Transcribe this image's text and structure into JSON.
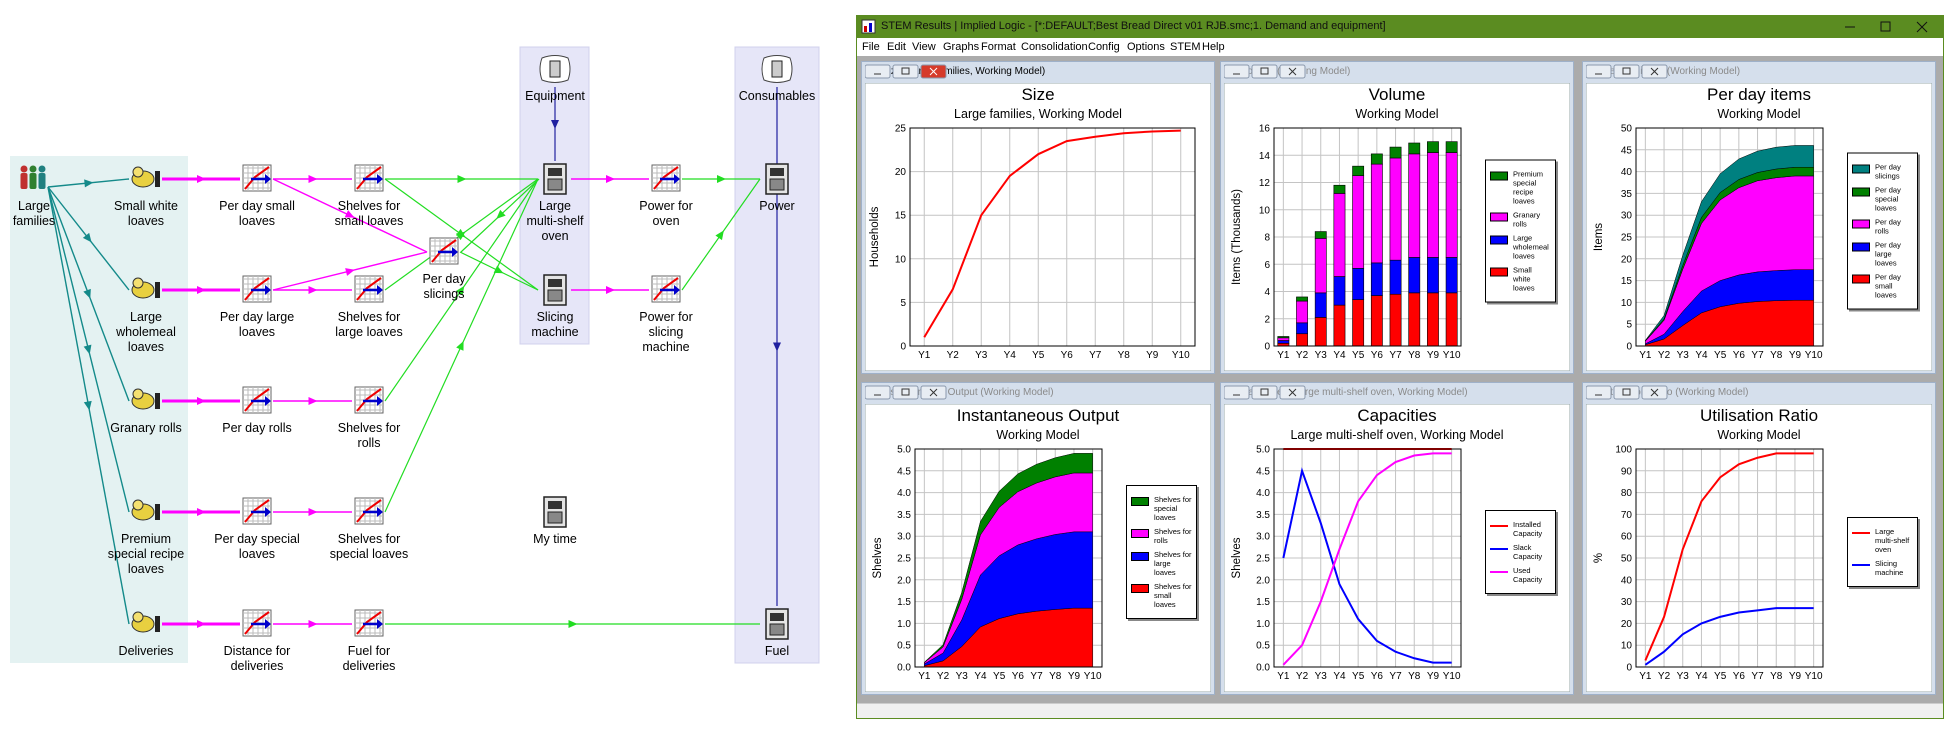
{
  "diagram": {
    "nodes": [
      {
        "label": "Large families"
      },
      {
        "label": "Small white loaves"
      },
      {
        "label": "Large wholemeal loaves"
      },
      {
        "label": "Granary rolls"
      },
      {
        "label": "Premium special recipe loaves"
      },
      {
        "label": "Deliveries"
      },
      {
        "label": "Per day small loaves"
      },
      {
        "label": "Per day large loaves"
      },
      {
        "label": "Per day rolls"
      },
      {
        "label": "Per day special loaves"
      },
      {
        "label": "Distance for deliveries"
      },
      {
        "label": "Shelves for small loaves"
      },
      {
        "label": "Shelves for large loaves"
      },
      {
        "label": "Shelves for rolls"
      },
      {
        "label": "Shelves for special loaves"
      },
      {
        "label": "Fuel for deliveries"
      },
      {
        "label": "Per day slicings"
      },
      {
        "label": "Large multi-shelf oven"
      },
      {
        "label": "Slicing machine"
      },
      {
        "label": "Power for oven"
      },
      {
        "label": "Power for slicing machine"
      },
      {
        "label": "Power"
      },
      {
        "label": "Fuel"
      },
      {
        "label": "My time"
      },
      {
        "label": "Equipment"
      },
      {
        "label": "Consumables"
      }
    ]
  },
  "window": {
    "title": "STEM Results | Implied Logic - [*:DEFAULT;Best Bread Direct v01 RJB.smc;1. Demand and equipment]",
    "menu": [
      "File",
      "Edit",
      "View",
      "Graphs",
      "Format",
      "Consolidation",
      "Config",
      "Options",
      "STEM",
      "Help"
    ]
  },
  "chart_data": [
    {
      "type": "line",
      "window_title": "Size (Large families, Working Model)",
      "title": "Size",
      "subtitle": "Large families, Working Model",
      "ylabel": "Households",
      "categories": [
        "Y1",
        "Y2",
        "Y3",
        "Y4",
        "Y5",
        "Y6",
        "Y7",
        "Y8",
        "Y9",
        "Y10"
      ],
      "values": [
        1,
        6.5,
        15,
        19.5,
        22,
        23.5,
        24,
        24.4,
        24.6,
        24.7
      ],
      "color": "#ff0000",
      "ylim": [
        0,
        25
      ],
      "yticks": [
        0,
        5,
        10,
        15,
        20,
        25
      ],
      "grid": true
    },
    {
      "type": "bar",
      "stacked": true,
      "window_title": "Volume (Working Model)",
      "title": "Volume",
      "subtitle": "Working Model",
      "ylabel": "Items (Thousands)",
      "categories": [
        "Y1",
        "Y2",
        "Y3",
        "Y4",
        "Y5",
        "Y6",
        "Y7",
        "Y8",
        "Y9",
        "Y10"
      ],
      "series": [
        {
          "name": "Small white loaves",
          "color": "#ff0000",
          "values": [
            0.2,
            0.9,
            2.1,
            3.0,
            3.4,
            3.7,
            3.8,
            3.9,
            3.9,
            3.9
          ]
        },
        {
          "name": "Large wholemeal loaves",
          "color": "#0000ff",
          "values": [
            0.2,
            0.8,
            1.8,
            2.1,
            2.3,
            2.4,
            2.5,
            2.6,
            2.6,
            2.6
          ]
        },
        {
          "name": "Granary rolls",
          "color": "#ff00ff",
          "values": [
            0.2,
            1.6,
            4.0,
            6.1,
            6.8,
            7.25,
            7.5,
            7.6,
            7.7,
            7.7
          ]
        },
        {
          "name": "Premium special recipe loaves",
          "color": "#008000",
          "values": [
            0.1,
            0.3,
            0.5,
            0.6,
            0.7,
            0.75,
            0.8,
            0.8,
            0.8,
            0.8
          ]
        }
      ],
      "ylim": [
        0,
        16
      ],
      "yticks": [
        0,
        2,
        4,
        6,
        8,
        10,
        12,
        14,
        16
      ],
      "grid": true,
      "legend": "right"
    },
    {
      "type": "area",
      "stacked": true,
      "window_title": "Per day items (Working Model)",
      "title": "Per day items",
      "subtitle": "Working Model",
      "ylabel": "Items",
      "categories": [
        "Y1",
        "Y2",
        "Y3",
        "Y4",
        "Y5",
        "Y6",
        "Y7",
        "Y8",
        "Y9",
        "Y10"
      ],
      "series": [
        {
          "name": "Per day small loaves",
          "color": "#ff0000",
          "values": [
            0.3,
            1.6,
            4.7,
            7.6,
            9.0,
            9.8,
            10.2,
            10.4,
            10.5,
            10.5
          ]
        },
        {
          "name": "Per day large loaves",
          "color": "#0000ff",
          "values": [
            0.2,
            1.1,
            3.2,
            5.0,
            6.0,
            6.5,
            6.8,
            6.9,
            7,
            7
          ]
        },
        {
          "name": "Per day rolls",
          "color": "#ff00ff",
          "values": [
            0.6,
            3.2,
            9.7,
            15.5,
            18.5,
            20,
            20.9,
            21.3,
            21.5,
            21.5
          ]
        },
        {
          "name": "Per day special loaves",
          "color": "#008000",
          "values": [
            0.1,
            0.3,
            0.9,
            1.4,
            1.7,
            1.9,
            1.9,
            2,
            2,
            2
          ]
        },
        {
          "name": "Per day slicings",
          "color": "#008080",
          "values": [
            0.1,
            0.8,
            2.3,
            3.6,
            4.3,
            4.7,
            4.9,
            5,
            5,
            5
          ]
        }
      ],
      "ylim": [
        0,
        50
      ],
      "yticks": [
        0,
        5,
        10,
        15,
        20,
        25,
        30,
        35,
        40,
        45,
        50
      ],
      "grid": true,
      "legend": "right"
    },
    {
      "type": "area",
      "stacked": true,
      "window_title": "Instantaneous Output (Working Model)",
      "title": "Instantaneous Output",
      "subtitle": "Working Model",
      "ylabel": "Shelves",
      "categories": [
        "Y1",
        "Y2",
        "Y3",
        "Y4",
        "Y5",
        "Y6",
        "Y7",
        "Y8",
        "Y9",
        "Y10"
      ],
      "series": [
        {
          "name": "Shelves for small loaves",
          "color": "#ff0000",
          "values": [
            0.03,
            0.14,
            0.47,
            0.92,
            1.11,
            1.22,
            1.28,
            1.32,
            1.35,
            1.35
          ]
        },
        {
          "name": "Shelves for large loaves",
          "color": "#0000ff",
          "values": [
            0.04,
            0.18,
            0.61,
            1.19,
            1.44,
            1.58,
            1.66,
            1.72,
            1.75,
            1.75
          ]
        },
        {
          "name": "Shelves for rolls",
          "color": "#ff00ff",
          "values": [
            0.03,
            0.14,
            0.47,
            0.92,
            1.11,
            1.22,
            1.28,
            1.32,
            1.35,
            1.35
          ]
        },
        {
          "name": "Shelves for special loaves",
          "color": "#008000",
          "values": [
            0.01,
            0.05,
            0.16,
            0.31,
            0.37,
            0.41,
            0.43,
            0.44,
            0.45,
            0.45
          ]
        }
      ],
      "ylim": [
        0,
        5
      ],
      "yticks": [
        {
          "value": 0,
          "label": "0.0"
        },
        0.5,
        {
          "value": 1,
          "label": "1.0"
        },
        1.5,
        {
          "value": 2,
          "label": "2.0"
        },
        2.5,
        {
          "value": 3,
          "label": "3.0"
        },
        3.5,
        {
          "value": 4,
          "label": "4.0"
        },
        4.5,
        {
          "value": 5,
          "label": "5.0"
        }
      ],
      "grid": true,
      "legend": "right"
    },
    {
      "type": "line",
      "window_title": "Capacities (Large multi-shelf oven, Working Model)",
      "title": "Capacities",
      "subtitle": "Large multi-shelf oven, Working Model",
      "ylabel": "Shelves",
      "categories": [
        "Y1",
        "Y2",
        "Y3",
        "Y4",
        "Y5",
        "Y6",
        "Y7",
        "Y8",
        "Y9",
        "Y10"
      ],
      "series": [
        {
          "name": "Installed Capacity",
          "color": "#ff0000",
          "values": [
            5,
            5,
            5,
            5,
            5,
            5,
            5,
            5,
            5,
            5
          ]
        },
        {
          "name": "Slack Capacity",
          "color": "#0000ff",
          "values": [
            2.5,
            4.5,
            3.3,
            1.9,
            1.1,
            0.6,
            0.35,
            0.2,
            0.1,
            0.1
          ]
        },
        {
          "name": "Used Capacity",
          "color": "#ff00ff",
          "values": [
            0.05,
            0.5,
            1.5,
            2.7,
            3.8,
            4.4,
            4.7,
            4.85,
            4.9,
            4.9
          ]
        }
      ],
      "ylim": [
        0,
        5
      ],
      "yticks": [
        {
          "value": 0,
          "label": "0.0"
        },
        0.5,
        {
          "value": 1,
          "label": "1.0"
        },
        1.5,
        {
          "value": 2,
          "label": "2.0"
        },
        2.5,
        {
          "value": 3,
          "label": "3.0"
        },
        3.5,
        {
          "value": 4,
          "label": "4.0"
        },
        4.5,
        {
          "value": 5,
          "label": "5.0"
        }
      ],
      "grid": true,
      "legend": "right"
    },
    {
      "type": "line",
      "window_title": "Utilisation Ratio (Working Model)",
      "title": "Utilisation Ratio",
      "subtitle": "Working Model",
      "ylabel": "%",
      "categories": [
        "Y1",
        "Y2",
        "Y3",
        "Y4",
        "Y5",
        "Y6",
        "Y7",
        "Y8",
        "Y9",
        "Y10"
      ],
      "series": [
        {
          "name": "Large multi-shelf oven",
          "color": "#ff0000",
          "values": [
            3,
            23,
            54,
            76,
            87,
            93,
            96,
            98,
            98,
            98
          ]
        },
        {
          "name": "Slicing machine",
          "color": "#0000ff",
          "values": [
            1,
            7,
            15,
            20,
            23,
            25,
            26,
            27,
            27,
            27
          ]
        }
      ],
      "ylim": [
        0,
        100
      ],
      "yticks": [
        0,
        10,
        20,
        30,
        40,
        50,
        60,
        70,
        80,
        90,
        100
      ],
      "grid": true,
      "legend": "right"
    }
  ]
}
